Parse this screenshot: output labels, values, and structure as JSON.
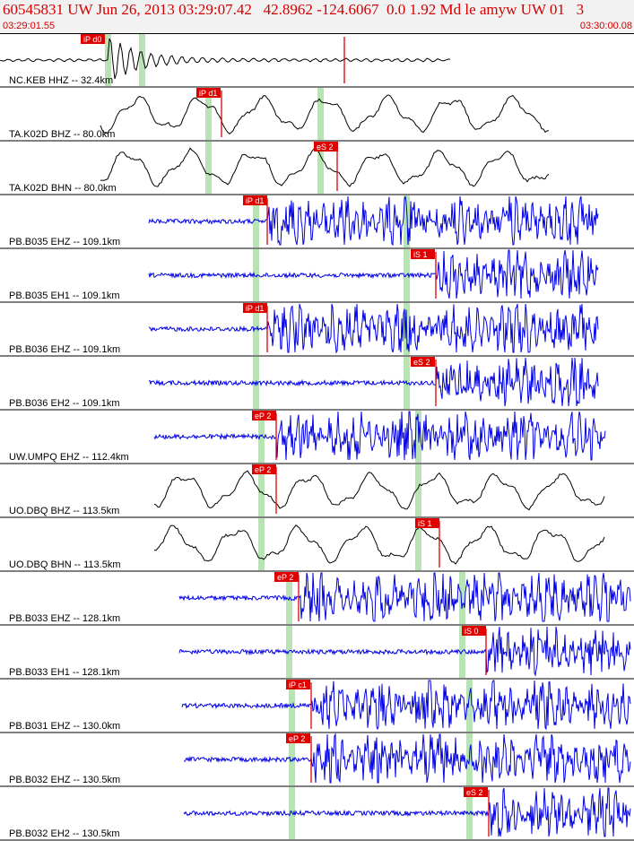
{
  "header": {
    "title": "60545831 UW Jun 26, 2013 03:29:07.42   42.8962 -124.6067  0.0 1.92 Md le amyw UW 01   3",
    "time_start": "03:29:01.55",
    "time_end": "03:30:00.08"
  },
  "colors": {
    "header_text": "#d40000",
    "header_bg": "#f2f2f2",
    "pick": "#e00000",
    "window": "#b9e3b5",
    "trace_short": "#0000e6",
    "trace_broad": "#000000"
  },
  "traces": [
    {
      "label": "NC.KEB HHZ -- 32.4km",
      "type": "quake",
      "color": "#000000",
      "picks": [
        {
          "text": "iP d0",
          "kind": "P"
        }
      ]
    },
    {
      "label": "TA.K02D BHZ -- 80.0km",
      "type": "wave",
      "color": "#000000",
      "picks": [
        {
          "text": "iP d1",
          "kind": "P"
        }
      ]
    },
    {
      "label": "TA.K02D BHN -- 80.0km",
      "type": "wave",
      "color": "#000000",
      "picks": [
        {
          "text": "eS 2",
          "kind": "S"
        }
      ]
    },
    {
      "label": "PB.B035 EHZ -- 109.1km",
      "type": "noise",
      "color": "#0000e6",
      "picks": [
        {
          "text": "iP d1",
          "kind": "P"
        }
      ]
    },
    {
      "label": "PB.B035 EH1 -- 109.1km",
      "type": "noise",
      "color": "#0000e6",
      "picks": [
        {
          "text": "iS 1",
          "kind": "S"
        }
      ]
    },
    {
      "label": "PB.B036 EHZ -- 109.1km",
      "type": "noise",
      "color": "#0000e6",
      "picks": [
        {
          "text": "iP d1",
          "kind": "P"
        }
      ]
    },
    {
      "label": "PB.B036 EH2 -- 109.1km",
      "type": "noise",
      "color": "#0000e6",
      "picks": [
        {
          "text": "eS 2",
          "kind": "S"
        }
      ]
    },
    {
      "label": "UW.UMPQ EHZ -- 112.4km",
      "type": "noise",
      "color": "#0000e6",
      "picks": [
        {
          "text": "eP 2",
          "kind": "P"
        }
      ]
    },
    {
      "label": "UO.DBQ BHZ -- 113.5km",
      "type": "wave",
      "color": "#000000",
      "picks": [
        {
          "text": "eP 2",
          "kind": "P"
        }
      ]
    },
    {
      "label": "UO.DBQ BHN -- 113.5km",
      "type": "wave",
      "color": "#000000",
      "picks": [
        {
          "text": "iS 1",
          "kind": "S"
        }
      ]
    },
    {
      "label": "PB.B033 EHZ -- 128.1km",
      "type": "noise",
      "color": "#0000e6",
      "picks": [
        {
          "text": "eP 2",
          "kind": "P"
        }
      ]
    },
    {
      "label": "PB.B033 EH1 -- 128.1km",
      "type": "noise",
      "color": "#0000e6",
      "picks": [
        {
          "text": "iS 0",
          "kind": "S"
        }
      ]
    },
    {
      "label": "PB.B031 EHZ -- 130.0km",
      "type": "noise",
      "color": "#0000e6",
      "picks": [
        {
          "text": "iP c1",
          "kind": "P"
        }
      ]
    },
    {
      "label": "PB.B032 EHZ -- 130.5km",
      "type": "noise",
      "color": "#0000e6",
      "picks": [
        {
          "text": "eP 2",
          "kind": "P"
        }
      ]
    },
    {
      "label": "PB.B032 EH2 -- 130.5km",
      "type": "noise",
      "color": "#0000e6",
      "picks": [
        {
          "text": "eS 2",
          "kind": "S"
        }
      ]
    }
  ]
}
